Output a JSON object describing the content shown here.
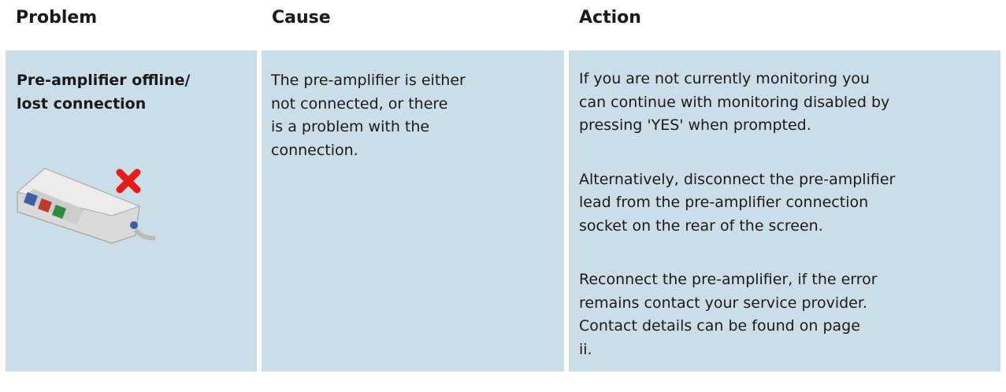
{
  "table": {
    "headers": [
      "Problem",
      "Cause",
      "Action"
    ],
    "rows": [
      {
        "problem": [
          "Pre-amplifier offline/",
          "lost connection"
        ],
        "cause": [
          "The pre-amplifier is either",
          "not connected, or there",
          "is a problem with the",
          "connection."
        ],
        "action": [
          [
            "If you are not currently monitoring you",
            "can continue with monitoring disabled by",
            "pressing 'YES' when prompted."
          ],
          [
            "Alternatively, disconnect the pre-amplifier",
            "lead from the pre-amplifier connection",
            "socket on the rear of the screen."
          ],
          [
            "Reconnect the pre-amplifier, if the error",
            "remains contact your service provider.",
            "Contact details can be found on page",
            "ii."
          ]
        ]
      }
    ]
  }
}
